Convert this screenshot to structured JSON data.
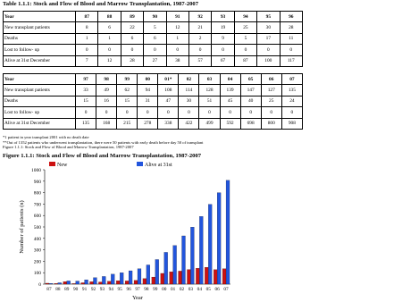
{
  "tables": [
    {
      "title": "Table 1.1.1: Stock and Flow of Blood and Marrow Transplantation, 1987-2007",
      "header": {
        "label": "Year",
        "values": [
          "87",
          "88",
          "89",
          "90",
          "91",
          "92",
          "93",
          "94",
          "95",
          "96"
        ]
      },
      "rows": [
        {
          "label": "New transplant patients",
          "values": [
            8,
            6,
            22,
            5,
            12,
            21,
            19,
            25,
            30,
            28
          ]
        },
        {
          "label": "Deaths",
          "values": [
            1,
            1,
            6,
            6,
            1,
            2,
            9,
            5,
            17,
            11
          ]
        },
        {
          "label": "Lost to follow- up",
          "values": [
            0,
            0,
            0,
            0,
            0,
            0,
            0,
            0,
            0,
            0
          ]
        },
        {
          "label": "Alive at 31st December",
          "values": [
            7,
            12,
            28,
            27,
            38,
            57,
            67,
            87,
            100,
            117
          ]
        }
      ]
    },
    {
      "header": {
        "label": "Year",
        "values": [
          "97",
          "98",
          "99",
          "00",
          "01*",
          "02",
          "03",
          "04",
          "05",
          "06",
          "07"
        ]
      },
      "rows": [
        {
          "label": "New transplant patients",
          "values": [
            33,
            49,
            62,
            94,
            108,
            114,
            128,
            139,
            147,
            127,
            135
          ]
        },
        {
          "label": "Deaths",
          "values": [
            15,
            16,
            15,
            31,
            47,
            30,
            51,
            45,
            40,
            25,
            24
          ]
        },
        {
          "label": "Lost to follow- up",
          "values": [
            0,
            0,
            0,
            0,
            0,
            0,
            0,
            0,
            0,
            0,
            0
          ]
        },
        {
          "label": "Alive at 31st December",
          "values": [
            135,
            168,
            215,
            278,
            338,
            422,
            499,
            592,
            698,
            800,
            908
          ]
        }
      ]
    }
  ],
  "notes": [
    "*1 patient in year transplant 2001 with no death date",
    "**Out of 1352 patients who underwent transplantation, there were 50 patients with early death before day 50 of transplant",
    "Figure 1.1.1: Stock and Flow of Blood and Marrow Transplantation, 1987-2007"
  ],
  "chart_data": {
    "type": "bar",
    "title": "Figure 1.1.1: Stock and Flow of Blood and Marrow Transplantation, 1987-2007",
    "x_label": "Year",
    "y_label": "Number of patients (n)",
    "categories": [
      "87",
      "88",
      "89",
      "90",
      "91",
      "92",
      "93",
      "94",
      "95",
      "96",
      "97",
      "98",
      "99",
      "00",
      "01",
      "02",
      "03",
      "04",
      "05",
      "06",
      "07"
    ],
    "series": [
      {
        "name": "New",
        "color": "#cc1111",
        "values": [
          8,
          6,
          22,
          5,
          12,
          21,
          19,
          25,
          30,
          28,
          33,
          49,
          62,
          94,
          108,
          114,
          128,
          139,
          147,
          127,
          135
        ]
      },
      {
        "name": "Alive at 31st",
        "color": "#2255dd",
        "values": [
          7,
          12,
          28,
          27,
          38,
          57,
          67,
          87,
          100,
          117,
          135,
          168,
          215,
          278,
          338,
          422,
          499,
          592,
          698,
          800,
          908
        ]
      }
    ],
    "ylim": [
      0,
      1000
    ],
    "yticks": [
      0,
      100,
      200,
      300,
      400,
      500,
      600,
      700,
      800,
      900,
      1000
    ]
  }
}
